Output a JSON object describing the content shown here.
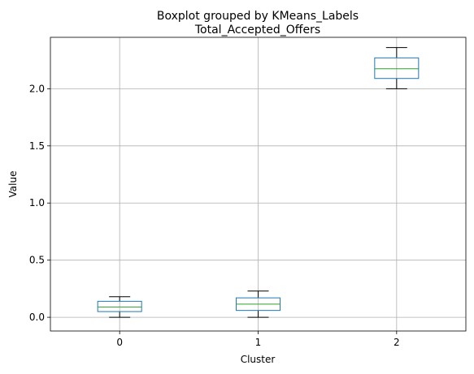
{
  "chart_data": {
    "type": "boxplot",
    "suptitle": "Boxplot grouped by KMeans_Labels",
    "title": "Total_Accepted_Offers",
    "xlabel": "Cluster",
    "ylabel": "Value",
    "categories": [
      "0",
      "1",
      "2"
    ],
    "ylim": [
      -0.12,
      2.45
    ],
    "yticks": [
      0.0,
      0.5,
      1.0,
      1.5,
      2.0
    ],
    "ytick_labels": [
      "0.0",
      "0.5",
      "1.0",
      "1.5",
      "2.0"
    ],
    "grid": true,
    "boxes": [
      {
        "category": "0",
        "whisker_low": 0.0,
        "q1": 0.05,
        "median": 0.09,
        "q3": 0.14,
        "whisker_high": 0.18
      },
      {
        "category": "1",
        "whisker_low": 0.0,
        "q1": 0.06,
        "median": 0.115,
        "q3": 0.17,
        "whisker_high": 0.23
      },
      {
        "category": "2",
        "whisker_low": 2.0,
        "q1": 2.09,
        "median": 2.175,
        "q3": 2.27,
        "whisker_high": 2.36
      }
    ],
    "colors": {
      "box": "#1f77b4",
      "median": "#2ca02c",
      "whisker": "#000000",
      "grid": "#b0b0b0"
    }
  }
}
